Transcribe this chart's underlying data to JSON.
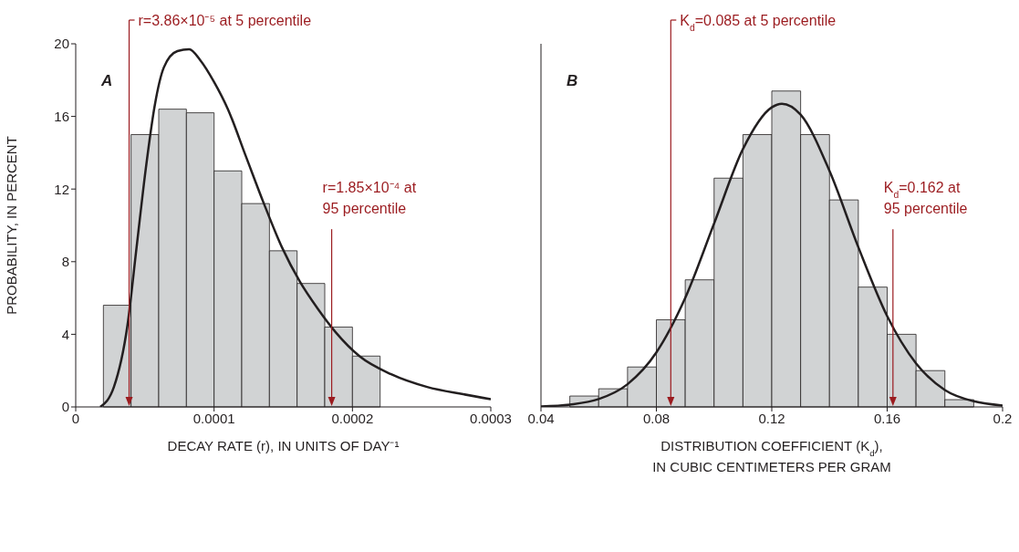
{
  "chart_data": [
    {
      "type": "histogram",
      "bins": [
        2e-05,
        4e-05,
        6e-05,
        8e-05,
        0.0001,
        0.00012,
        0.00014,
        0.00016,
        0.00018,
        0.0002,
        0.00022
      ],
      "values": [
        5.6,
        15.0,
        16.4,
        16.2,
        13.0,
        11.2,
        8.6,
        6.8,
        4.4,
        2.8
      ],
      "color": "#d1d3d4",
      "series": [
        {
          "type": "line",
          "color": "#231f20",
          "x": [
            1.77e-05,
            2.76e-05,
            3.74e-05,
            4.4e-05,
            5.06e-05,
            5.71e-05,
            6.37e-05,
            7.35e-05,
            8.2e-05,
            9e-05,
            0.0001,
            0.00011,
            0.000123,
            0.000136,
            0.000149,
            0.000162,
            0.000175,
            0.000188,
            0.000205,
            0.000228,
            0.000254,
            0.00028,
            0.0003
          ],
          "values": [
            0,
            1.1,
            4.5,
            8.8,
            13.1,
            16.6,
            18.7,
            19.6,
            19.7,
            19.1,
            17.9,
            16.4,
            13.8,
            11.2,
            8.8,
            6.9,
            5.4,
            4.1,
            2.8,
            1.8,
            1.1,
            0.7,
            0.43
          ]
        }
      ],
      "xlabel": "DECAY RATE (r), IN UNITS OF DAY⁻¹",
      "ylabel": "PROBABILITY, IN PERCENT",
      "xlim": [
        0,
        0.0003
      ],
      "xticks": [
        0,
        0.0001,
        0.0002,
        0.0003
      ],
      "ylim": [
        0,
        20
      ],
      "yticks": [
        0,
        4,
        8,
        12,
        16,
        20
      ],
      "ref_lines": [
        {
          "axis": "x",
          "value": 3.86e-05,
          "color": "#9b1b1f"
        },
        {
          "axis": "x",
          "value": 0.000185,
          "color": "#9b1b1f"
        }
      ],
      "annotations": [
        "A",
        "r=3.86×10⁻⁵ at 5 percentile",
        "r=1.85×10⁻⁴ at\n95 percentile"
      ],
      "grid": false
    },
    {
      "type": "histogram",
      "bins": [
        0.05,
        0.06,
        0.07,
        0.08,
        0.09,
        0.1,
        0.11,
        0.12,
        0.13,
        0.14,
        0.15,
        0.16,
        0.17,
        0.18,
        0.19
      ],
      "values": [
        0.6,
        1.0,
        2.2,
        4.8,
        7.0,
        12.6,
        15.0,
        17.4,
        15.0,
        11.4,
        6.6,
        4.0,
        2.0,
        0.4
      ],
      "color": "#d1d3d4",
      "series": [
        {
          "type": "line",
          "color": "#231f20",
          "x": [
            0.04,
            0.05,
            0.06,
            0.07,
            0.08,
            0.09,
            0.1,
            0.11,
            0.12,
            0.1235,
            0.13,
            0.14,
            0.15,
            0.16,
            0.17,
            0.18,
            0.19,
            0.2
          ],
          "values": [
            0.03,
            0.13,
            0.43,
            1.25,
            3.0,
            6.0,
            10.1,
            14.2,
            16.5,
            16.7,
            16.1,
            13.0,
            8.8,
            5.0,
            2.4,
            0.93,
            0.31,
            0.08
          ]
        }
      ],
      "xlabel": "DISTRIBUTION COEFFICIENT (K$_{d}$),\nIN CUBIC CENTIMETERS PER GRAM",
      "xlim": [
        0.04,
        0.2
      ],
      "xticks": [
        0.04,
        0.08,
        0.12,
        0.16,
        0.2
      ],
      "ylim": [
        0,
        20
      ],
      "yticks": [
        0,
        4,
        8,
        12,
        16,
        20
      ],
      "tick_labels": "x",
      "ref_lines": [
        {
          "axis": "x",
          "value": 0.085,
          "color": "#9b1b1f"
        },
        {
          "axis": "x",
          "value": 0.162,
          "color": "#9b1b1f"
        }
      ],
      "annotations": [
        "B",
        "K$_{d}$=0.085 at 5 percentile",
        "K$_{d}$=0.162 at\n95 percentile"
      ],
      "grid": false
    }
  ]
}
